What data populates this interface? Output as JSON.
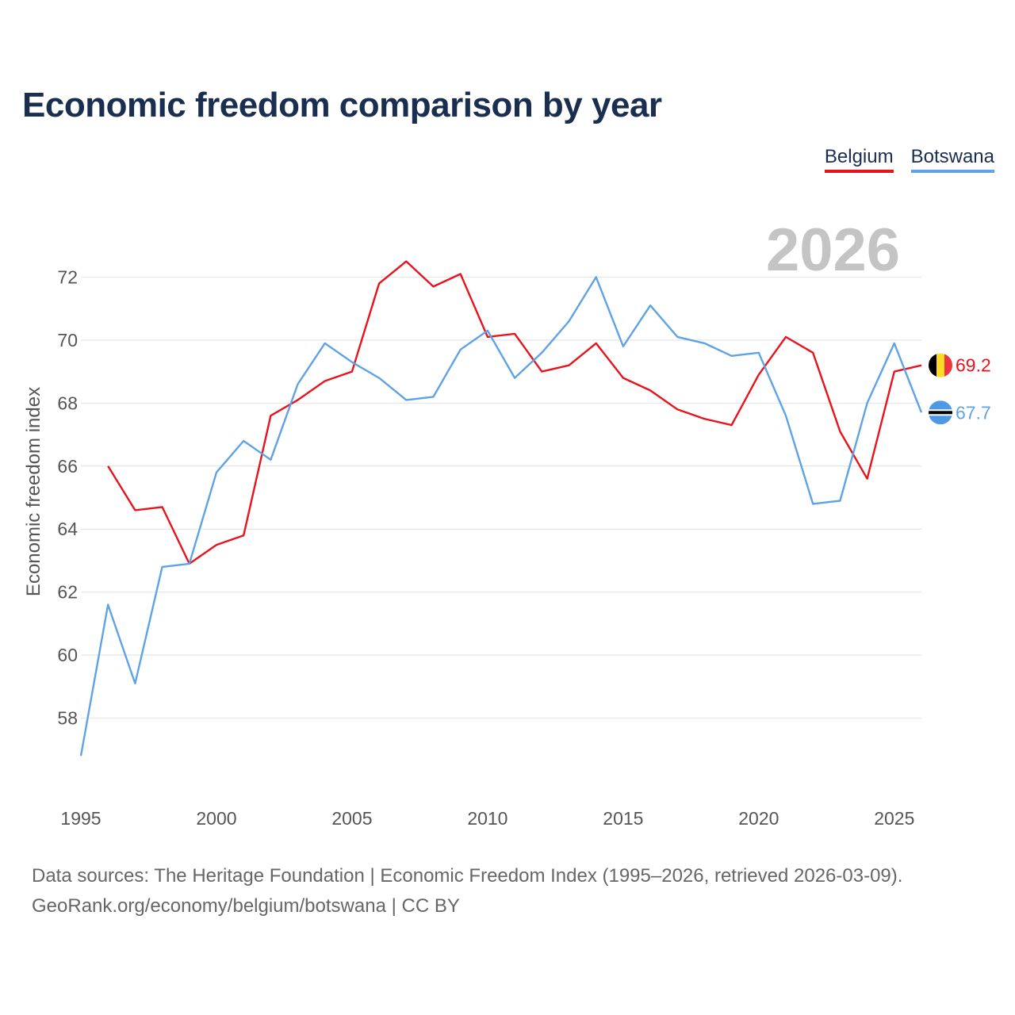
{
  "chart_data": {
    "type": "line",
    "title": "Economic freedom comparison by year",
    "ylabel": "Economic freedom index",
    "xlabel": "",
    "current_year": "2026",
    "xlim": [
      1995,
      2026
    ],
    "ylim": [
      56,
      74
    ],
    "yticks": [
      58,
      60,
      62,
      64,
      66,
      68,
      70,
      72
    ],
    "xticks": [
      1995,
      2000,
      2005,
      2010,
      2015,
      2020,
      2025
    ],
    "grid": true,
    "legend_position": "top-right",
    "series": [
      {
        "name": "Belgium",
        "color": "#e8131c",
        "end_label": "69.2",
        "points": [
          [
            1996,
            66.0
          ],
          [
            1997,
            64.6
          ],
          [
            1998,
            64.7
          ],
          [
            1999,
            62.9
          ],
          [
            2000,
            63.5
          ],
          [
            2001,
            63.8
          ],
          [
            2002,
            67.6
          ],
          [
            2003,
            68.1
          ],
          [
            2004,
            68.7
          ],
          [
            2005,
            69.0
          ],
          [
            2006,
            71.8
          ],
          [
            2007,
            72.5
          ],
          [
            2008,
            71.7
          ],
          [
            2009,
            72.1
          ],
          [
            2010,
            70.1
          ],
          [
            2011,
            70.2
          ],
          [
            2012,
            69.0
          ],
          [
            2013,
            69.2
          ],
          [
            2014,
            69.9
          ],
          [
            2015,
            68.8
          ],
          [
            2016,
            68.4
          ],
          [
            2017,
            67.8
          ],
          [
            2018,
            67.5
          ],
          [
            2019,
            67.3
          ],
          [
            2020,
            68.9
          ],
          [
            2021,
            70.1
          ],
          [
            2022,
            69.6
          ],
          [
            2023,
            67.1
          ],
          [
            2024,
            65.6
          ],
          [
            2025,
            69.0
          ],
          [
            2026,
            69.2
          ]
        ]
      },
      {
        "name": "Botswana",
        "color": "#5fa3e4",
        "end_label": "67.7",
        "points": [
          [
            1995,
            56.8
          ],
          [
            1996,
            61.6
          ],
          [
            1997,
            59.1
          ],
          [
            1998,
            62.8
          ],
          [
            1999,
            62.9
          ],
          [
            2000,
            65.8
          ],
          [
            2001,
            66.8
          ],
          [
            2002,
            66.2
          ],
          [
            2003,
            68.6
          ],
          [
            2004,
            69.9
          ],
          [
            2005,
            69.3
          ],
          [
            2006,
            68.8
          ],
          [
            2007,
            68.1
          ],
          [
            2008,
            68.2
          ],
          [
            2009,
            69.7
          ],
          [
            2010,
            70.3
          ],
          [
            2011,
            68.8
          ],
          [
            2012,
            69.6
          ],
          [
            2013,
            70.6
          ],
          [
            2014,
            72.0
          ],
          [
            2015,
            69.8
          ],
          [
            2016,
            71.1
          ],
          [
            2017,
            70.1
          ],
          [
            2018,
            69.9
          ],
          [
            2019,
            69.5
          ],
          [
            2020,
            69.6
          ],
          [
            2021,
            67.6
          ],
          [
            2022,
            64.8
          ],
          [
            2023,
            64.9
          ],
          [
            2024,
            68.0
          ],
          [
            2025,
            69.9
          ],
          [
            2026,
            67.7
          ]
        ]
      }
    ]
  },
  "legend": {
    "belgium": "Belgium",
    "botswana": "Botswana"
  },
  "footer": {
    "line1": "Data sources: The Heritage Foundation | Economic Freedom Index (1995–2026, retrieved 2026-03-09).",
    "line2": "GeoRank.org/economy/belgium/botswana | CC BY"
  }
}
